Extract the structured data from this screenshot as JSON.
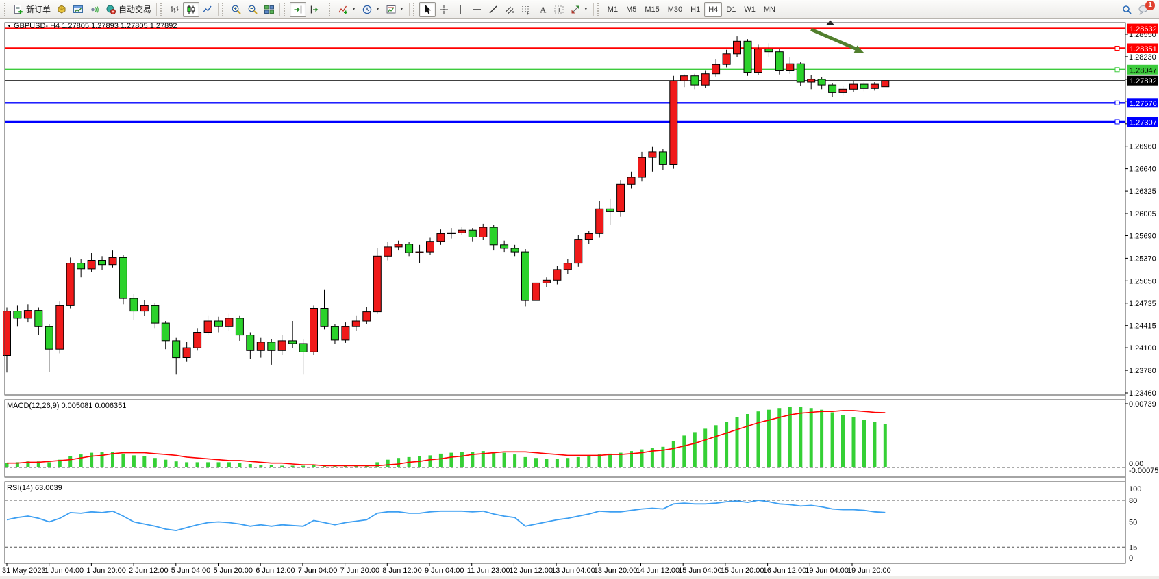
{
  "window": {
    "badge_count": "1"
  },
  "toolbar": {
    "groups": [
      {
        "items": [
          {
            "name": "new-order",
            "icon": "doc-plus",
            "label": "新订单"
          },
          {
            "name": "market-watch",
            "icon": "cube"
          },
          {
            "name": "data-window",
            "icon": "window-chart"
          },
          {
            "name": "sound-alerts",
            "icon": "speaker"
          },
          {
            "name": "auto-trading",
            "icon": "autotrade",
            "label": "自动交易"
          }
        ]
      },
      {
        "items": [
          {
            "name": "bar-chart-mode",
            "icon": "bars"
          },
          {
            "name": "candlestick-mode",
            "icon": "candles",
            "pressed": true
          },
          {
            "name": "line-chart-mode",
            "icon": "linechart"
          }
        ]
      },
      {
        "items": [
          {
            "name": "zoom-in",
            "icon": "zoom-in"
          },
          {
            "name": "zoom-out",
            "icon": "zoom-out"
          },
          {
            "name": "tile-windows",
            "icon": "tiles"
          }
        ]
      },
      {
        "items": [
          {
            "name": "auto-scroll",
            "icon": "autoscroll",
            "pressed": true
          },
          {
            "name": "chart-shift",
            "icon": "shift"
          }
        ]
      },
      {
        "items": [
          {
            "name": "indicators",
            "icon": "indicator",
            "dropdown": true
          },
          {
            "name": "periods",
            "icon": "clock",
            "dropdown": true
          },
          {
            "name": "templates",
            "icon": "template",
            "dropdown": true
          }
        ]
      },
      {
        "items": [
          {
            "name": "cursor-tool",
            "icon": "cursor",
            "pressed": true
          },
          {
            "name": "crosshair-tool",
            "icon": "crosshair"
          },
          {
            "name": "vertical-line-tool",
            "icon": "vline"
          },
          {
            "name": "horizontal-line-tool",
            "icon": "hline"
          },
          {
            "name": "trendline-tool",
            "icon": "trend"
          },
          {
            "name": "channel-tool",
            "icon": "channel"
          },
          {
            "name": "fibonacci-tool",
            "icon": "fibo"
          },
          {
            "name": "text-tool",
            "icon": "textA"
          },
          {
            "name": "label-tool",
            "icon": "labelT"
          },
          {
            "name": "arrows-tool",
            "icon": "arrows",
            "dropdown": true
          }
        ]
      },
      {
        "items": [
          {
            "name": "tf-m1",
            "label": "M1"
          },
          {
            "name": "tf-m5",
            "label": "M5"
          },
          {
            "name": "tf-m15",
            "label": "M15"
          },
          {
            "name": "tf-m30",
            "label": "M30"
          },
          {
            "name": "tf-h1",
            "label": "H1"
          },
          {
            "name": "tf-h4",
            "label": "H4",
            "pressed": true
          },
          {
            "name": "tf-d1",
            "label": "D1"
          },
          {
            "name": "tf-w1",
            "label": "W1"
          },
          {
            "name": "tf-mn",
            "label": "MN"
          }
        ]
      }
    ],
    "selected_timeframe": "H4"
  },
  "chart": {
    "title_symbol": "GBPUSD-.H4",
    "ohlc_readout": "1.27805 1.27893 1.27805 1.27892",
    "price_ticks": [
      "1.28550",
      "1.28230",
      "1.27910",
      "1.27600",
      "1.27280",
      "1.26960",
      "1.26640",
      "1.26325",
      "1.26005",
      "1.25690",
      "1.25370",
      "1.25050",
      "1.24735",
      "1.24415",
      "1.24100",
      "1.23780",
      "1.23460"
    ],
    "time_labels": [
      "31 May 2023",
      "1 Jun 04:00",
      "1 Jun 20:00",
      "2 Jun 12:00",
      "5 Jun 04:00",
      "5 Jun 20:00",
      "6 Jun 12:00",
      "7 Jun 04:00",
      "7 Jun 20:00",
      "8 Jun 12:00",
      "9 Jun 04:00",
      "11 Jun 23:00",
      "12 Jun 12:00",
      "13 Jun 04:00",
      "13 Jun 20:00",
      "14 Jun 12:00",
      "15 Jun 04:00",
      "15 Jun 20:00",
      "16 Jun 12:00",
      "19 Jun 04:00",
      "19 Jun 20:00"
    ]
  },
  "indicators": {
    "macd_label": "MACD(12,26,9)",
    "macd_main": "0.005081",
    "macd_signal": "0.006351",
    "macd_axis_top": "0.00739",
    "macd_axis_zero": "0.00",
    "macd_axis_bottom": "-0.000751",
    "rsi_label": "RSI(14)",
    "rsi_value": "63.0039",
    "rsi_axis": [
      "100",
      "80",
      "50",
      "15",
      "0"
    ]
  },
  "colors": {
    "bull": "#f01a1a",
    "bear": "#2bd22b",
    "wick": "#000000",
    "hline_red": "#ff0000",
    "hline_green": "#3dcb3d",
    "hline_blue": "#0000ff",
    "price_line": "#000000",
    "macd_hist": "#35d035",
    "macd_signal": "#ff0000",
    "rsi_line": "#3d9ff2",
    "arrow": "#517f2d",
    "axis_text": "#000000",
    "frame": "#4a4a4a"
  },
  "chart_data": {
    "type": "candlestick",
    "symbol": "GBPUSD-.H4",
    "timeframe": "H4",
    "price_range_labels": [
      1.2855,
      1.2346
    ],
    "levels": [
      {
        "price": 1.28632,
        "label": "1.28632",
        "color": "#ff0000",
        "handle": false,
        "text": "#ffffff"
      },
      {
        "price": 1.28351,
        "label": "1.28351",
        "color": "#ff0000",
        "handle": true,
        "text": "#ffffff"
      },
      {
        "price": 1.28047,
        "label": "1.28047",
        "color": "#3dcb3d",
        "handle": true,
        "text": "#000000"
      },
      {
        "price": 1.27892,
        "label": "1.27892",
        "color": "#000000",
        "handle": false,
        "text": "#ffffff"
      },
      {
        "price": 1.27576,
        "label": "1.27576",
        "color": "#0000ff",
        "handle": true,
        "text": "#ffffff"
      },
      {
        "price": 1.27307,
        "label": "1.27307",
        "color": "#0000ff",
        "handle": true,
        "text": "#ffffff"
      }
    ],
    "price_ticks": [
      1.2855,
      1.2823,
      1.2791,
      1.276,
      1.2728,
      1.2696,
      1.2664,
      1.26325,
      1.26005,
      1.2569,
      1.2537,
      1.2505,
      1.24735,
      1.24415,
      1.241,
      1.2378,
      1.2346
    ],
    "candles": [
      [
        1.2399,
        1.2467,
        1.2375,
        1.2462
      ],
      [
        1.2462,
        1.247,
        1.244,
        1.2452
      ],
      [
        1.2452,
        1.2472,
        1.2446,
        1.2463
      ],
      [
        1.2463,
        1.2467,
        1.2428,
        1.244
      ],
      [
        1.244,
        1.2444,
        1.2376,
        1.2408
      ],
      [
        1.2408,
        1.2476,
        1.2402,
        1.247
      ],
      [
        1.247,
        1.2538,
        1.2466,
        1.253
      ],
      [
        1.253,
        1.2536,
        1.251,
        1.2522
      ],
      [
        1.2522,
        1.2545,
        1.2518,
        1.2534
      ],
      [
        1.2534,
        1.254,
        1.252,
        1.2528
      ],
      [
        1.2528,
        1.2548,
        1.2524,
        1.2538
      ],
      [
        1.2538,
        1.2542,
        1.2472,
        1.248
      ],
      [
        1.248,
        1.2486,
        1.245,
        1.2462
      ],
      [
        1.2462,
        1.2478,
        1.2455,
        1.247
      ],
      [
        1.247,
        1.2474,
        1.2438,
        1.2445
      ],
      [
        1.2445,
        1.2448,
        1.2408,
        1.242
      ],
      [
        1.242,
        1.2424,
        1.2372,
        1.2396
      ],
      [
        1.2396,
        1.2418,
        1.239,
        1.241
      ],
      [
        1.241,
        1.2438,
        1.2406,
        1.2432
      ],
      [
        1.2432,
        1.2456,
        1.2428,
        1.2448
      ],
      [
        1.2448,
        1.2454,
        1.2432,
        1.244
      ],
      [
        1.244,
        1.2458,
        1.2434,
        1.2452
      ],
      [
        1.2452,
        1.2456,
        1.242,
        1.2428
      ],
      [
        1.2428,
        1.2432,
        1.2394,
        1.2406
      ],
      [
        1.2406,
        1.2424,
        1.2396,
        1.2418
      ],
      [
        1.2418,
        1.2422,
        1.2386,
        1.2406
      ],
      [
        1.2406,
        1.2428,
        1.24,
        1.242
      ],
      [
        1.242,
        1.2448,
        1.241,
        1.2416
      ],
      [
        1.2416,
        1.2422,
        1.2372,
        1.2404
      ],
      [
        1.2404,
        1.247,
        1.24,
        1.2466
      ],
      [
        1.2466,
        1.2492,
        1.2436,
        1.244
      ],
      [
        1.244,
        1.2444,
        1.2415,
        1.2421
      ],
      [
        1.2421,
        1.2446,
        1.2417,
        1.244
      ],
      [
        1.244,
        1.2456,
        1.2434,
        1.2448
      ],
      [
        1.2448,
        1.2468,
        1.2444,
        1.2461
      ],
      [
        1.2461,
        1.2552,
        1.2458,
        1.254
      ],
      [
        1.254,
        1.256,
        1.2534,
        1.2553
      ],
      [
        1.2553,
        1.2562,
        1.2548,
        1.2557
      ],
      [
        1.2557,
        1.256,
        1.254,
        1.2545
      ],
      [
        1.2545,
        1.2556,
        1.253,
        1.2546
      ],
      [
        1.2546,
        1.2566,
        1.2542,
        1.2561
      ],
      [
        1.2561,
        1.2578,
        1.2556,
        1.2572
      ],
      [
        1.2572,
        1.258,
        1.2565,
        1.2573
      ],
      [
        1.2573,
        1.2582,
        1.257,
        1.2577
      ],
      [
        1.2577,
        1.258,
        1.2561,
        1.2567
      ],
      [
        1.2567,
        1.2586,
        1.2563,
        1.2581
      ],
      [
        1.2581,
        1.2584,
        1.2548,
        1.2556
      ],
      [
        1.2556,
        1.2562,
        1.2546,
        1.2551
      ],
      [
        1.2551,
        1.2556,
        1.254,
        1.2546
      ],
      [
        1.2546,
        1.255,
        1.2469,
        1.2477
      ],
      [
        1.2477,
        1.2506,
        1.2473,
        1.2502
      ],
      [
        1.2502,
        1.251,
        1.2496,
        1.2506
      ],
      [
        1.2506,
        1.2526,
        1.25,
        1.2521
      ],
      [
        1.2521,
        1.2536,
        1.2515,
        1.253
      ],
      [
        1.253,
        1.257,
        1.2525,
        1.2564
      ],
      [
        1.2564,
        1.2576,
        1.2557,
        1.2572
      ],
      [
        1.2572,
        1.2619,
        1.2566,
        1.2607
      ],
      [
        1.2607,
        1.2621,
        1.2584,
        1.2603
      ],
      [
        1.2603,
        1.2648,
        1.2596,
        1.2642
      ],
      [
        1.2642,
        1.266,
        1.2636,
        1.2652
      ],
      [
        1.2652,
        1.2688,
        1.2646,
        1.268
      ],
      [
        1.268,
        1.2695,
        1.266,
        1.2688
      ],
      [
        1.2688,
        1.2692,
        1.2662,
        1.267
      ],
      [
        1.267,
        1.2796,
        1.2664,
        1.2789
      ],
      [
        1.2789,
        1.2798,
        1.278,
        1.2796
      ],
      [
        1.2796,
        1.2799,
        1.2777,
        1.2783
      ],
      [
        1.2783,
        1.2803,
        1.2779,
        1.2799
      ],
      [
        1.2799,
        1.282,
        1.2795,
        1.2812
      ],
      [
        1.2812,
        1.2833,
        1.2808,
        1.2827
      ],
      [
        1.2827,
        1.2852,
        1.2822,
        1.2845
      ],
      [
        1.2845,
        1.2848,
        1.2796,
        1.2801
      ],
      [
        1.2801,
        1.284,
        1.2797,
        1.2834
      ],
      [
        1.2834,
        1.2842,
        1.2823,
        1.283
      ],
      [
        1.283,
        1.2834,
        1.2798,
        1.2803
      ],
      [
        1.2803,
        1.2822,
        1.2799,
        1.2813
      ],
      [
        1.2813,
        1.2816,
        1.2782,
        1.2787
      ],
      [
        1.2787,
        1.2797,
        1.2777,
        1.2791
      ],
      [
        1.2791,
        1.2794,
        1.2777,
        1.2783
      ],
      [
        1.2783,
        1.2786,
        1.2766,
        1.2772
      ],
      [
        1.2772,
        1.2782,
        1.2768,
        1.2777
      ],
      [
        1.2777,
        1.2788,
        1.2773,
        1.2784
      ],
      [
        1.2784,
        1.2787,
        1.2774,
        1.2778
      ],
      [
        1.2778,
        1.2787,
        1.2775,
        1.2784
      ],
      [
        1.27805,
        1.27893,
        1.27805,
        1.27892
      ]
    ],
    "macd": {
      "params": [
        12,
        26,
        9
      ],
      "axis": {
        "top": 0.00739,
        "zero": 0.0,
        "bottom": -0.000751
      },
      "hist": [
        0.0005,
        0.0006,
        0.0007,
        0.0007,
        0.0006,
        0.0009,
        0.0013,
        0.0015,
        0.0017,
        0.0018,
        0.0018,
        0.0016,
        0.0014,
        0.0013,
        0.0011,
        0.0009,
        0.0007,
        0.0006,
        0.0006,
        0.0006,
        0.0006,
        0.0006,
        0.0005,
        0.0004,
        0.0003,
        0.0003,
        0.0002,
        0.0002,
        0.0002,
        0.0003,
        0.0003,
        0.0002,
        0.0002,
        0.0002,
        0.0003,
        0.0006,
        0.0009,
        0.0011,
        0.0012,
        0.0013,
        0.0014,
        0.0016,
        0.0017,
        0.0018,
        0.0018,
        0.0019,
        0.0018,
        0.0017,
        0.0015,
        0.0012,
        0.0011,
        0.001,
        0.001,
        0.0011,
        0.0012,
        0.0013,
        0.0015,
        0.0016,
        0.0017,
        0.0019,
        0.0021,
        0.0023,
        0.0024,
        0.0031,
        0.0037,
        0.0041,
        0.0045,
        0.0049,
        0.0053,
        0.0058,
        0.0062,
        0.0065,
        0.0067,
        0.0069,
        0.007,
        0.007,
        0.0069,
        0.0067,
        0.0064,
        0.0061,
        0.0058,
        0.0055,
        0.0053,
        0.005081
      ],
      "signal": [
        0.0005,
        0.0005,
        0.0006,
        0.0006,
        0.0007,
        0.0008,
        0.0009,
        0.0011,
        0.0013,
        0.0014,
        0.0016,
        0.0017,
        0.0017,
        0.0017,
        0.0016,
        0.0015,
        0.0014,
        0.0012,
        0.0011,
        0.001,
        0.0009,
        0.0008,
        0.0008,
        0.0007,
        0.0006,
        0.0005,
        0.0005,
        0.0004,
        0.0003,
        0.0003,
        0.0002,
        0.0002,
        0.0002,
        0.0002,
        0.0002,
        0.0002,
        0.0003,
        0.0004,
        0.0006,
        0.0007,
        0.0009,
        0.001,
        0.0012,
        0.0013,
        0.0015,
        0.0016,
        0.0017,
        0.0018,
        0.0018,
        0.0018,
        0.0017,
        0.0016,
        0.0015,
        0.0014,
        0.0014,
        0.0014,
        0.0014,
        0.0015,
        0.0015,
        0.0016,
        0.0017,
        0.0019,
        0.002,
        0.0022,
        0.0025,
        0.0028,
        0.0032,
        0.0036,
        0.004,
        0.0044,
        0.0048,
        0.0052,
        0.0055,
        0.0058,
        0.0061,
        0.0063,
        0.0064,
        0.0065,
        0.0065,
        0.0066,
        0.0066,
        0.0065,
        0.0064,
        0.006351
      ]
    },
    "rsi": {
      "period": 14,
      "levels": [
        80,
        50,
        15
      ],
      "values": [
        53,
        56,
        58,
        55,
        50,
        55,
        63,
        62,
        64,
        63,
        65,
        58,
        50,
        47,
        44,
        40,
        38,
        42,
        46,
        49,
        50,
        49,
        47,
        44,
        46,
        44,
        46,
        45,
        44,
        52,
        49,
        46,
        49,
        51,
        53,
        62,
        64,
        64,
        62,
        62,
        64,
        65,
        65,
        65,
        64,
        65,
        61,
        58,
        56,
        44,
        47,
        50,
        53,
        55,
        58,
        61,
        65,
        64,
        64,
        66,
        68,
        69,
        68,
        75,
        76,
        75,
        75,
        76,
        78,
        79,
        77,
        80,
        78,
        75,
        74,
        72,
        73,
        71,
        68,
        67,
        67,
        66,
        64,
        63.0039
      ]
    }
  }
}
